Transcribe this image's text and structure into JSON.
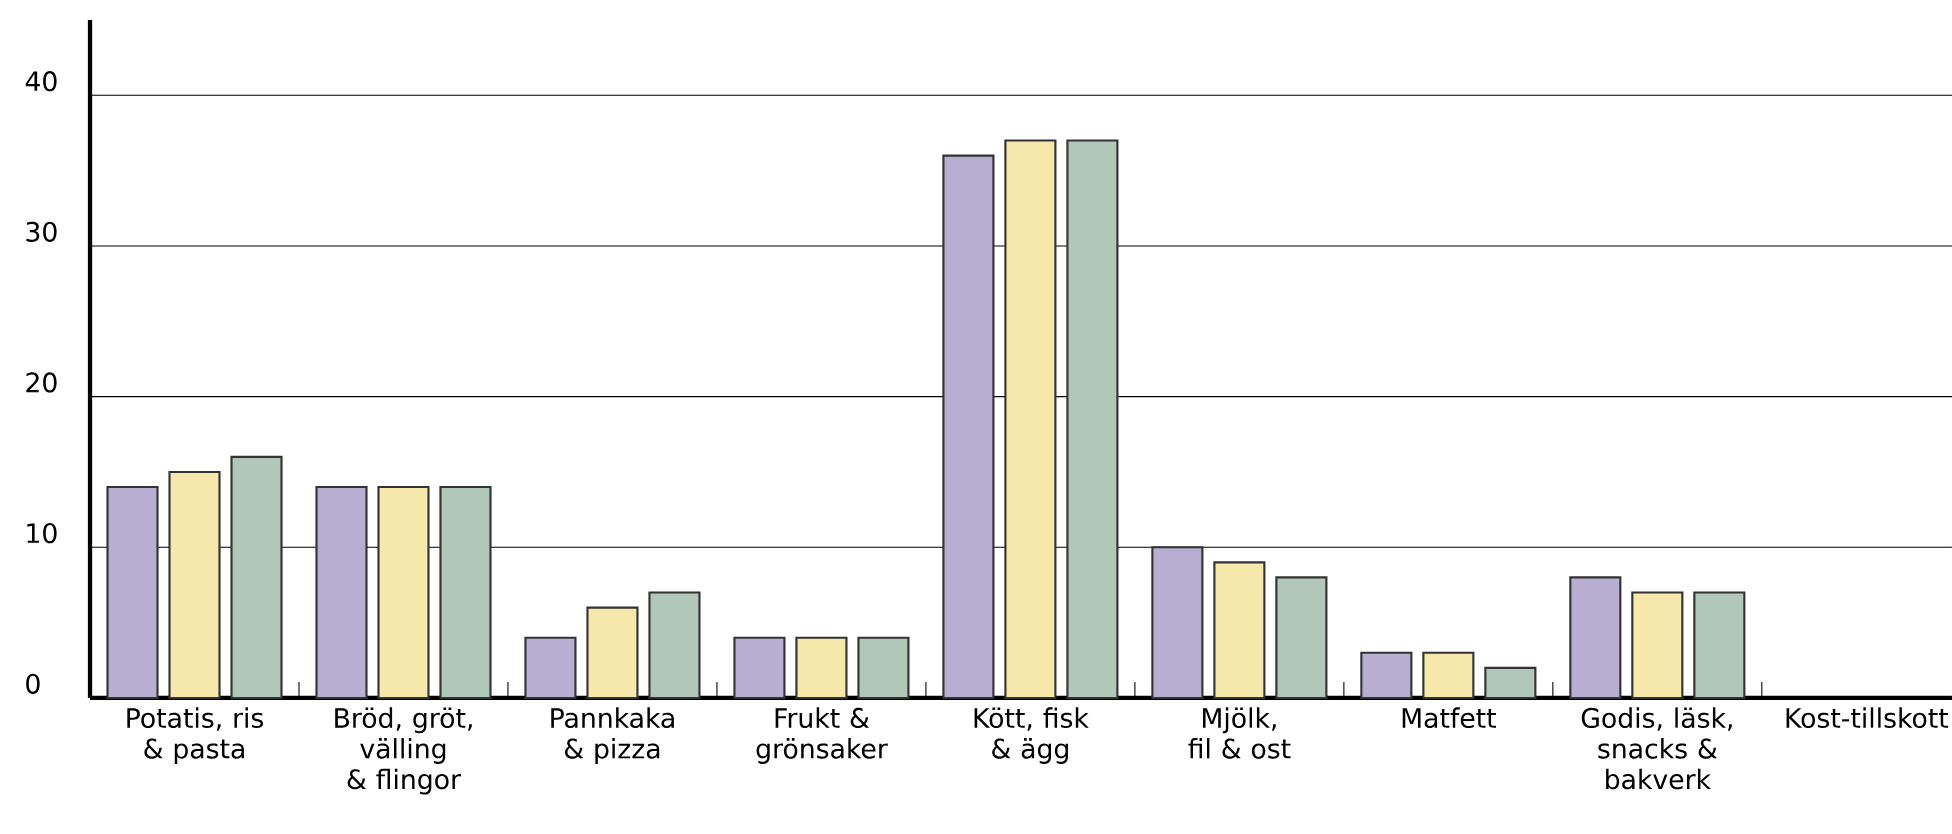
{
  "chart_data": {
    "type": "bar",
    "categories": [
      "Potatis, ris & pasta",
      "Bröd, gröt, välling & flingor",
      "Pannkaka & pizza",
      "Frukt & grönsaker",
      "Kött, fisk & ägg",
      "Mjölk, fil & ost",
      "Matfett",
      "Godis, läsk, snacks & bakverk",
      "Kost-tillskott"
    ],
    "series": [
      {
        "color": "#b8aed2",
        "values": [
          14,
          14,
          4,
          4,
          36,
          10,
          3,
          8,
          null
        ]
      },
      {
        "color": "#f6e8ab",
        "values": [
          15,
          14,
          6,
          4,
          37,
          9,
          3,
          7,
          null
        ]
      },
      {
        "color": "#b0c7b9",
        "values": [
          16,
          14,
          7,
          4,
          37,
          8,
          2,
          7,
          null
        ]
      }
    ],
    "ylim": [
      0,
      45
    ],
    "yticks": [
      0,
      10,
      20,
      30,
      40
    ],
    "grid": "y"
  }
}
